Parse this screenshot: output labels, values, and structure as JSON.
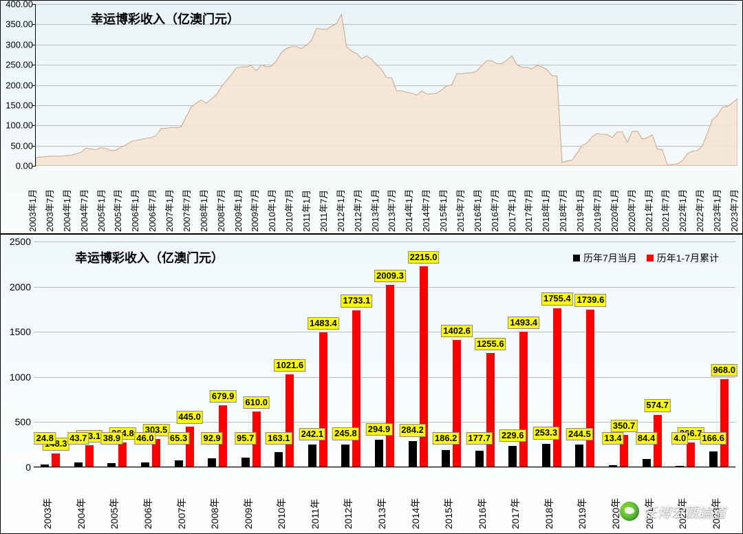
{
  "watermark": "任博宏觀論道",
  "chart1": {
    "type": "area",
    "title": "幸运博彩收入（亿澳门元）",
    "title_fontsize": 18,
    "background_gradient": [
      "#e8f4f8",
      "#fafcfc"
    ],
    "area_fill": "#f5e3d3",
    "area_stroke": "#c9a78a",
    "grid_color": "#bbbbbb",
    "ylim": [
      0,
      400
    ],
    "ytick_step": 50,
    "ytick_labels": [
      "0.00",
      "50.00",
      "100.00",
      "150.00",
      "200.00",
      "250.00",
      "300.00",
      "350.00",
      "400.00"
    ],
    "xlabels": [
      "2003年1月",
      "2003年7月",
      "2004年1月",
      "2004年7月",
      "2005年1月",
      "2005年7月",
      "2006年1月",
      "2006年7月",
      "2007年1月",
      "2007年7月",
      "2008年1月",
      "2008年7月",
      "2009年1月",
      "2009年7月",
      "2010年1月",
      "2010年7月",
      "2011年1月",
      "2011年7月",
      "2012年1月",
      "2012年7月",
      "2013年1月",
      "2013年7月",
      "2014年1月",
      "2014年7月",
      "2015年1月",
      "2015年7月",
      "2016年1月",
      "2016年7月",
      "2017年1月",
      "2017年7月",
      "2018年1月",
      "2018年7月",
      "2019年1月",
      "2019年7月",
      "2020年1月",
      "2020年7月",
      "2021年1月",
      "2021年7月",
      "2022年1月",
      "2022年7月",
      "2023年1月",
      "2023年7月"
    ],
    "series": [
      20,
      22,
      23,
      24,
      24,
      24,
      25,
      26,
      30,
      33,
      44,
      42,
      40,
      45,
      43,
      38,
      39,
      46,
      52,
      60,
      63,
      65,
      68,
      70,
      75,
      92,
      93,
      95,
      95,
      96,
      122,
      145,
      155,
      163,
      155,
      165,
      175,
      195,
      210,
      225,
      242,
      245,
      245,
      248,
      235,
      250,
      245,
      246,
      260,
      280,
      290,
      295,
      295,
      290,
      298,
      310,
      340,
      338,
      338,
      345,
      352,
      375,
      295,
      284,
      278,
      265,
      272,
      264,
      250,
      238,
      218,
      218,
      185,
      186,
      182,
      180,
      175,
      185,
      178,
      178,
      180,
      188,
      198,
      200,
      228,
      228,
      230,
      230,
      235,
      248,
      260,
      260,
      253,
      253,
      262,
      272,
      250,
      244,
      244,
      240,
      248,
      245,
      238,
      223,
      222,
      8,
      12,
      14,
      32,
      50,
      57,
      72,
      80,
      78,
      78,
      70,
      84,
      84,
      58,
      85,
      86,
      66,
      70,
      77,
      42,
      40,
      3,
      4,
      5,
      13,
      30,
      36,
      38,
      50,
      80,
      115,
      125,
      145,
      147,
      156,
      166
    ]
  },
  "chart2": {
    "type": "grouped-bar",
    "title": "幸运博彩收入（亿澳门元）",
    "title_fontsize": 18,
    "background_gradient": [
      "#f0f8fc",
      "#fdfefe"
    ],
    "ylim": [
      0,
      2500
    ],
    "ytick_step": 500,
    "ytick_labels": [
      "0",
      "500",
      "1000",
      "1500",
      "2000",
      "2500"
    ],
    "grid_color": "#bbbbbb",
    "legend": {
      "items": [
        {
          "color": "#000000",
          "label": "历年7月当月"
        },
        {
          "color": "#ff0000",
          "label": "历年1-7月累计"
        }
      ]
    },
    "categories": [
      "2003年",
      "2004年",
      "2005年",
      "2006年",
      "2007年",
      "2008年",
      "2009年",
      "2010年",
      "2011年",
      "2012年",
      "2013年",
      "2014年",
      "2015年",
      "2016年",
      "2017年",
      "2018年",
      "2019年",
      "2020年",
      "2021年",
      "2022年",
      "2023年"
    ],
    "series_black": [
      24.8,
      43.7,
      38.9,
      46.0,
      65.3,
      92.9,
      95.7,
      163.1,
      242.1,
      245.8,
      294.9,
      284.2,
      186.2,
      177.7,
      229.6,
      253.3,
      244.5,
      13.4,
      84.4,
      4.0,
      166.6
    ],
    "series_red": [
      148.3,
      233.1,
      264.8,
      303.5,
      445.0,
      679.9,
      610.0,
      1021.6,
      1483.4,
      1733.1,
      2009.3,
      2215.0,
      1402.6,
      1255.6,
      1493.4,
      1755.4,
      1739.6,
      350.7,
      574.7,
      266.7,
      968.0
    ],
    "bar_colors": [
      "#000000",
      "#ff0000"
    ],
    "label_background": "#ffff00",
    "label_fontsize": 13,
    "data_labels_black": [
      "24.8",
      "43.7",
      "38.9",
      "46.0",
      "65.3",
      "92.9",
      "95.7",
      "163.1",
      "242.1",
      "245.8",
      "294.9",
      "284.2",
      "186.2",
      "177.7",
      "229.6",
      "253.3",
      "244.5",
      "13.4",
      "84.4",
      "4.0",
      "166.6"
    ],
    "data_labels_red": [
      "148.3",
      "233.1",
      "264.8",
      "303.5",
      "445.0",
      "679.9",
      "610.0",
      "1021.6",
      "1483.4",
      "1733.1",
      "2009.3",
      "2215.0",
      "1402.6",
      "1255.6",
      "1493.4",
      "1755.4",
      "1739.6",
      "350.7",
      "574.7",
      "266.7",
      "968.0"
    ]
  }
}
